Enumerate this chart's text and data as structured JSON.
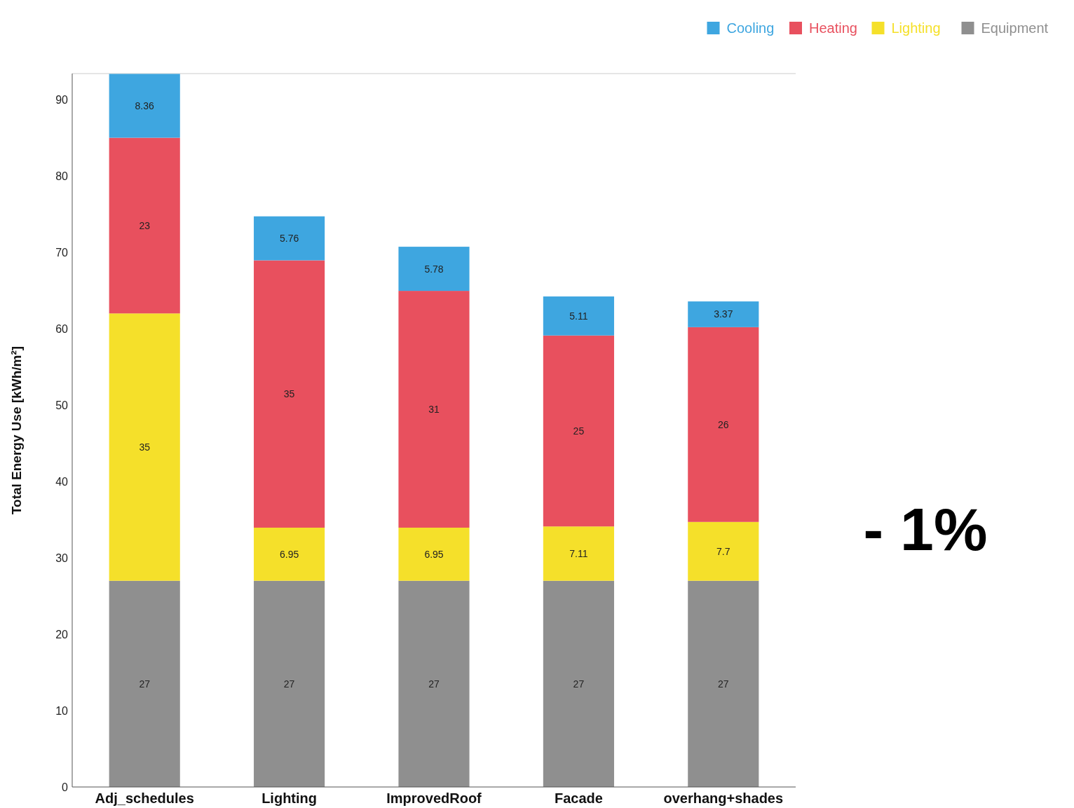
{
  "chart_data": {
    "type": "bar",
    "stacked": true,
    "ylabel": "Total Energy Use [kWh/m²]",
    "categories": [
      "Adj_schedules",
      "Lighting",
      "ImprovedRoof",
      "Facade",
      "overhang+shades"
    ],
    "series": [
      {
        "name": "Equipment",
        "color": "#8f8f8f",
        "values": [
          27,
          27,
          27,
          27,
          27
        ],
        "value_labels": [
          "27",
          "27",
          "27",
          "27",
          "27"
        ]
      },
      {
        "name": "Lighting",
        "color": "#f5e02a",
        "values": [
          35,
          6.95,
          6.95,
          7.11,
          7.7
        ],
        "value_labels": [
          "35",
          "6.95",
          "6.95",
          "7.11",
          "7.7"
        ]
      },
      {
        "name": "Heating",
        "color": "#e8505e",
        "values": [
          23,
          35,
          31,
          25,
          25.5
        ],
        "value_labels": [
          "23",
          "35",
          "31",
          "25",
          "26"
        ]
      },
      {
        "name": "Cooling",
        "color": "#3ea6e0",
        "values": [
          8.36,
          5.76,
          5.78,
          5.11,
          3.37
        ],
        "value_labels": [
          "8.36",
          "5.76",
          "5.78",
          "5.11",
          "3.37"
        ]
      }
    ],
    "ylim": [
      0,
      93.4
    ],
    "yticks": [
      0,
      10,
      20,
      30,
      40,
      50,
      60,
      70,
      80,
      90
    ],
    "legend": "top right",
    "annotations": [
      "- 1%"
    ]
  }
}
